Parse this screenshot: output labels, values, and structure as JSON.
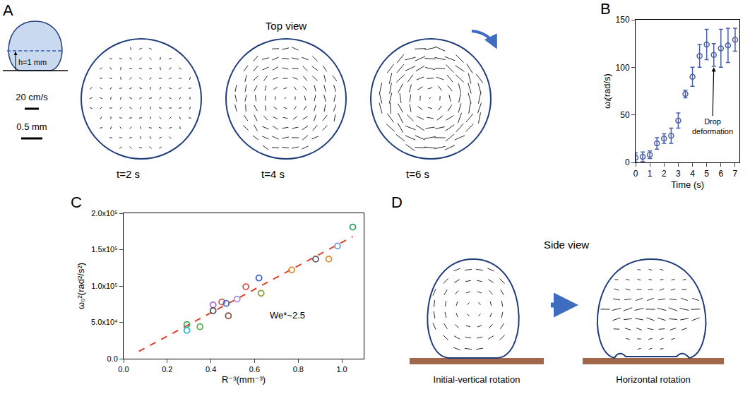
{
  "figure_a": {
    "panel": "A",
    "title": "Top view",
    "height_label": "h=1 mm",
    "scale_bars": [
      "20 cm/s",
      "0.5 mm"
    ],
    "frames": [
      "t=2 s",
      "t=4 s",
      "t=6 s"
    ]
  },
  "chart_data": [
    {
      "panel": "B",
      "type": "scatter",
      "marker": "open_circle",
      "color": "#4a5fa8",
      "xlabel": "Time (s)",
      "ylabel": "ωᵢ(rad/s)",
      "x": [
        0,
        0.5,
        1,
        1.5,
        2,
        2.5,
        3,
        3.5,
        4,
        4.5,
        5,
        5.5,
        6,
        6.5,
        7
      ],
      "values": [
        5,
        6,
        8,
        20,
        25,
        28,
        44,
        72,
        90,
        112,
        124,
        113,
        120,
        123,
        129
      ],
      "errors": [
        5,
        5,
        4,
        6,
        5,
        8,
        8,
        4,
        10,
        12,
        16,
        12,
        20,
        18,
        12
      ],
      "xlim": [
        0,
        7.3
      ],
      "xticks": [
        0,
        1,
        2,
        3,
        4,
        5,
        6,
        7
      ],
      "ylim": [
        0,
        150
      ],
      "yticks": [
        0,
        50,
        100,
        150
      ],
      "annotations": [
        {
          "text": "Drop deformation",
          "x": 5.5,
          "y": 113
        }
      ]
    },
    {
      "panel": "C",
      "type": "scatter",
      "marker": "open_circle",
      "xlabel": "R⁻³(mm⁻³)",
      "ylabel": "ω₀²(rad²/s²)",
      "x": [
        0.29,
        0.29,
        0.35,
        0.41,
        0.41,
        0.45,
        0.47,
        0.48,
        0.52,
        0.56,
        0.62,
        0.63,
        0.77,
        0.88,
        0.94,
        0.98,
        1.05
      ],
      "values": [
        47000,
        39000,
        44000,
        74000,
        66000,
        78000,
        76000,
        59000,
        82000,
        99000,
        111000,
        90000,
        122000,
        137000,
        137000,
        155000,
        181000
      ],
      "colors": [
        "#3aa655",
        "#2bb5c8",
        "#59b04a",
        "#b06ad0",
        "#555555",
        "#d9534f",
        "#3b6fd0",
        "#8a5a44",
        "#a58cd6",
        "#e0504a",
        "#3a62d8",
        "#8fa03a",
        "#e8862a",
        "#555555",
        "#e08a20",
        "#6a9be0",
        "#2ca05a"
      ],
      "fit": {
        "x": [
          0.07,
          1.05
        ],
        "values": [
          10000,
          168000
        ],
        "color": "#e0402a",
        "line_style": "dashed"
      },
      "xlim": [
        0,
        1.1
      ],
      "xticks": [
        {
          "value": 0,
          "label": "0.0"
        },
        0.2,
        0.4,
        0.6,
        0.8,
        {
          "value": 1,
          "label": "1.0"
        }
      ],
      "ylim": [
        0,
        200000
      ],
      "yticks": [
        {
          "value": 0,
          "label": "0.0"
        },
        {
          "value": 50000,
          "label": "5.0x10⁴"
        },
        {
          "value": 100000,
          "label": "1.0x10⁵"
        },
        {
          "value": 150000,
          "label": "1.5x10⁵"
        },
        {
          "value": 200000,
          "label": "2.0x10⁵"
        }
      ],
      "annotations": [
        {
          "text": "We*~2.5",
          "x": 0.75,
          "y": 60000
        }
      ]
    }
  ],
  "figure_d": {
    "panel": "D",
    "title": "Side view",
    "frames": [
      "Initial-vertical rotation",
      "Horizontal rotation"
    ]
  }
}
